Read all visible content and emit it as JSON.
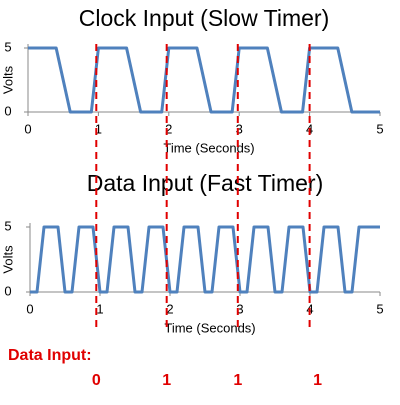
{
  "chart_data": [
    {
      "type": "line",
      "title": "Clock Input (Slow Timer)",
      "x_label": "Time (Seconds)",
      "y_label": "Volts",
      "x": [
        0,
        0.4,
        0.6,
        0.9,
        1.0,
        1.4,
        1.6,
        1.9,
        2.0,
        2.4,
        2.6,
        2.9,
        3.0,
        3.4,
        3.6,
        3.9,
        4.0,
        4.4,
        4.6,
        5.0
      ],
      "series": [
        {
          "color": "#4f81bd",
          "values": [
            5,
            5,
            0,
            0,
            5,
            5,
            0,
            0,
            5,
            5,
            0,
            0,
            5,
            5,
            0,
            0,
            5,
            5,
            0,
            0
          ]
        }
      ],
      "xlim": [
        0,
        5
      ],
      "ylim": [
        0,
        5
      ],
      "xticks": [
        0,
        1,
        2,
        3,
        4,
        5
      ],
      "yticks": [
        0,
        5
      ],
      "markers": [
        0.97,
        1.97,
        2.98,
        4.0
      ],
      "marker_color": "#e00000"
    },
    {
      "type": "line",
      "title": "Data Input (Fast Timer)",
      "x_label": "Time (Seconds)",
      "y_label": "Volts",
      "x": [
        0,
        0.1,
        0.2,
        0.3,
        0.4,
        0.5,
        0.6,
        0.7,
        0.8,
        0.9,
        1.0,
        1.1,
        1.2,
        1.3,
        1.4,
        1.5,
        1.6,
        1.7,
        1.8,
        1.9,
        2.0,
        2.1,
        2.2,
        2.3,
        2.4,
        2.5,
        2.6,
        2.7,
        2.8,
        2.9,
        3.0,
        3.1,
        3.2,
        3.3,
        3.4,
        3.5,
        3.6,
        3.7,
        3.8,
        3.9,
        4.0,
        4.1,
        4.2,
        4.3,
        4.4,
        4.5,
        4.6,
        4.7,
        4.8,
        4.9,
        5.0
      ],
      "series": [
        {
          "color": "#4f81bd",
          "values": [
            0,
            0,
            5,
            5,
            5,
            0,
            0,
            5,
            5,
            5,
            0,
            0,
            5,
            5,
            5,
            0,
            0,
            5,
            5,
            5,
            0,
            0,
            5,
            5,
            5,
            0,
            0,
            5,
            5,
            5,
            0,
            0,
            5,
            5,
            5,
            0,
            0,
            5,
            5,
            5,
            0,
            0,
            5,
            5,
            5,
            0,
            0,
            5,
            5,
            5,
            5
          ]
        }
      ],
      "xlim": [
        0,
        5
      ],
      "ylim": [
        0,
        5
      ],
      "xticks": [
        0,
        1,
        2,
        3,
        4,
        5
      ],
      "yticks": [
        0,
        5
      ]
    }
  ],
  "data_input": {
    "label": "Data Input:",
    "bits": [
      "0",
      "1",
      "1",
      "1"
    ]
  }
}
